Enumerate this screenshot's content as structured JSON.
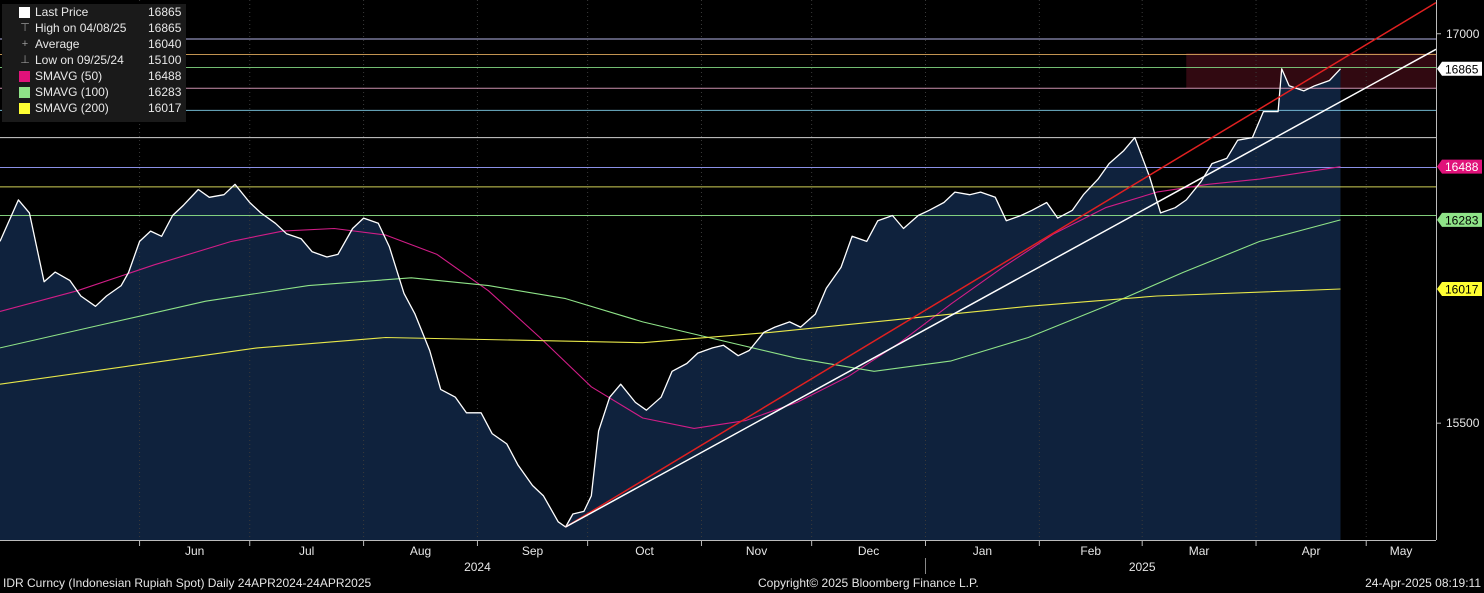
{
  "legend": {
    "rows": [
      {
        "label": "Last Price",
        "value": "16865",
        "swatch": "#ffffff",
        "glyph": ""
      },
      {
        "label": "High on 04/08/25",
        "value": "16865",
        "swatch": "",
        "glyph": "⊤"
      },
      {
        "label": "Average",
        "value": "16040",
        "swatch": "",
        "glyph": "+"
      },
      {
        "label": "Low on 09/25/24",
        "value": "15100",
        "swatch": "",
        "glyph": "⊥"
      },
      {
        "label": "SMAVG (50)",
        "value": "16488",
        "swatch": "#e0127a",
        "glyph": ""
      },
      {
        "label": "SMAVG (100)",
        "value": "16283",
        "swatch": "#8fe388",
        "glyph": ""
      },
      {
        "label": "SMAVG (200)",
        "value": "16017",
        "swatch": "#ffff33",
        "glyph": ""
      }
    ]
  },
  "footer": {
    "left": "IDR Curncy (Indonesian Rupiah Spot)  Daily 24APR2024-24APR2025",
    "center": "Copyright© 2025 Bloomberg Finance L.P.",
    "right": "24-Apr-2025 08:19:11"
  },
  "colors": {
    "background": "#000000",
    "area_fill": "#0f223d",
    "price": "#ffffff",
    "sma50": "#d11d87",
    "sma100": "#8fe388",
    "sma200": "#e8e84a",
    "trend_red": "#e02020",
    "trend_white": "#ffffff"
  },
  "chart_data": {
    "type": "line",
    "x_range": [
      "2024-04-24",
      "2025-05-20"
    ],
    "ylim": [
      15050,
      17130
    ],
    "y_ticks": [
      15500,
      17000
    ],
    "x_ticks": [
      {
        "label": "Jun",
        "date": "2024-06-01"
      },
      {
        "label": "Jul",
        "date": "2024-07-01"
      },
      {
        "label": "Aug",
        "date": "2024-08-01"
      },
      {
        "label": "Sep",
        "date": "2024-09-01"
      },
      {
        "label": "Oct",
        "date": "2024-10-01"
      },
      {
        "label": "Nov",
        "date": "2024-11-01"
      },
      {
        "label": "Dec",
        "date": "2024-12-01"
      },
      {
        "label": "Jan",
        "date": "2025-01-01"
      },
      {
        "label": "Feb",
        "date": "2025-02-01"
      },
      {
        "label": "Mar",
        "date": "2025-03-01"
      },
      {
        "label": "Apr",
        "date": "2025-04-01"
      },
      {
        "label": "May",
        "date": "2025-05-01"
      }
    ],
    "year_labels": [
      {
        "label": "2024",
        "date": "2024-09-01"
      },
      {
        "label": "2025",
        "date": "2025-03-01"
      }
    ],
    "value_labels": [
      {
        "value": 16865,
        "text": "16865",
        "bg": "#ffffff",
        "fg": "#000000"
      },
      {
        "value": 16488,
        "text": "16488",
        "bg": "#e0127a",
        "fg": "#ffffff"
      },
      {
        "value": 16283,
        "text": "16283",
        "bg": "#8fe388",
        "fg": "#000000"
      },
      {
        "value": 16017,
        "text": "16017",
        "bg": "#ffff33",
        "fg": "#000000"
      }
    ],
    "hlines": [
      {
        "value": 16980,
        "color": "#c9c9ff"
      },
      {
        "value": 16920,
        "color": "#d6a35a"
      },
      {
        "value": 16870,
        "color": "#7fd17f"
      },
      {
        "value": 16790,
        "color": "#e0a0c0"
      },
      {
        "value": 16705,
        "color": "#7ec8e3"
      },
      {
        "value": 16600,
        "color": "#e8e8e8"
      },
      {
        "value": 16485,
        "color": "#9aa0ff"
      },
      {
        "value": 16410,
        "color": "#e8e860"
      },
      {
        "value": 16300,
        "color": "#8fe388"
      }
    ],
    "band": {
      "from_date": "2025-03-13",
      "to_date": "2025-05-20",
      "y0": 16790,
      "y1": 16925
    },
    "series": [
      {
        "name": "Last Price",
        "points": [
          [
            "2024-04-24",
            16200
          ],
          [
            "2024-04-29",
            16360
          ],
          [
            "2024-05-02",
            16310
          ],
          [
            "2024-05-06",
            16045
          ],
          [
            "2024-05-09",
            16082
          ],
          [
            "2024-05-13",
            16050
          ],
          [
            "2024-05-16",
            15990
          ],
          [
            "2024-05-20",
            15950
          ],
          [
            "2024-05-23",
            15990
          ],
          [
            "2024-05-27",
            16030
          ],
          [
            "2024-05-29",
            16080
          ],
          [
            "2024-06-01",
            16200
          ],
          [
            "2024-06-04",
            16240
          ],
          [
            "2024-06-07",
            16220
          ],
          [
            "2024-06-10",
            16300
          ],
          [
            "2024-06-13",
            16340
          ],
          [
            "2024-06-17",
            16400
          ],
          [
            "2024-06-20",
            16370
          ],
          [
            "2024-06-24",
            16380
          ],
          [
            "2024-06-27",
            16420
          ],
          [
            "2024-07-01",
            16350
          ],
          [
            "2024-07-04",
            16310
          ],
          [
            "2024-07-08",
            16270
          ],
          [
            "2024-07-11",
            16230
          ],
          [
            "2024-07-15",
            16210
          ],
          [
            "2024-07-18",
            16160
          ],
          [
            "2024-07-22",
            16140
          ],
          [
            "2024-07-25",
            16150
          ],
          [
            "2024-07-29",
            16250
          ],
          [
            "2024-08-01",
            16290
          ],
          [
            "2024-08-05",
            16270
          ],
          [
            "2024-08-08",
            16180
          ],
          [
            "2024-08-12",
            16000
          ],
          [
            "2024-08-15",
            15920
          ],
          [
            "2024-08-19",
            15780
          ],
          [
            "2024-08-22",
            15630
          ],
          [
            "2024-08-26",
            15600
          ],
          [
            "2024-08-29",
            15540
          ],
          [
            "2024-09-02",
            15540
          ],
          [
            "2024-09-05",
            15460
          ],
          [
            "2024-09-09",
            15420
          ],
          [
            "2024-09-12",
            15340
          ],
          [
            "2024-09-16",
            15260
          ],
          [
            "2024-09-19",
            15220
          ],
          [
            "2024-09-23",
            15120
          ],
          [
            "2024-09-25",
            15100
          ],
          [
            "2024-09-27",
            15150
          ],
          [
            "2024-09-30",
            15160
          ],
          [
            "2024-10-02",
            15220
          ],
          [
            "2024-10-04",
            15470
          ],
          [
            "2024-10-07",
            15600
          ],
          [
            "2024-10-10",
            15650
          ],
          [
            "2024-10-14",
            15580
          ],
          [
            "2024-10-17",
            15550
          ],
          [
            "2024-10-21",
            15600
          ],
          [
            "2024-10-24",
            15700
          ],
          [
            "2024-10-28",
            15730
          ],
          [
            "2024-10-31",
            15770
          ],
          [
            "2024-11-04",
            15790
          ],
          [
            "2024-11-07",
            15800
          ],
          [
            "2024-11-11",
            15760
          ],
          [
            "2024-11-14",
            15780
          ],
          [
            "2024-11-18",
            15850
          ],
          [
            "2024-11-21",
            15870
          ],
          [
            "2024-11-25",
            15890
          ],
          [
            "2024-11-28",
            15870
          ],
          [
            "2024-12-02",
            15920
          ],
          [
            "2024-12-05",
            16020
          ],
          [
            "2024-12-09",
            16100
          ],
          [
            "2024-12-12",
            16220
          ],
          [
            "2024-12-16",
            16200
          ],
          [
            "2024-12-19",
            16280
          ],
          [
            "2024-12-23",
            16300
          ],
          [
            "2024-12-26",
            16250
          ],
          [
            "2024-12-30",
            16300
          ],
          [
            "2025-01-02",
            16320
          ],
          [
            "2025-01-06",
            16350
          ],
          [
            "2025-01-09",
            16390
          ],
          [
            "2025-01-13",
            16380
          ],
          [
            "2025-01-16",
            16390
          ],
          [
            "2025-01-20",
            16370
          ],
          [
            "2025-01-23",
            16280
          ],
          [
            "2025-01-27",
            16300
          ],
          [
            "2025-01-30",
            16320
          ],
          [
            "2025-02-03",
            16350
          ],
          [
            "2025-02-06",
            16290
          ],
          [
            "2025-02-10",
            16320
          ],
          [
            "2025-02-13",
            16380
          ],
          [
            "2025-02-17",
            16440
          ],
          [
            "2025-02-20",
            16500
          ],
          [
            "2025-02-24",
            16550
          ],
          [
            "2025-02-27",
            16600
          ],
          [
            "2025-03-03",
            16450
          ],
          [
            "2025-03-06",
            16310
          ],
          [
            "2025-03-10",
            16330
          ],
          [
            "2025-03-13",
            16360
          ],
          [
            "2025-03-17",
            16430
          ],
          [
            "2025-03-20",
            16500
          ],
          [
            "2025-03-24",
            16520
          ],
          [
            "2025-03-27",
            16590
          ],
          [
            "2025-03-31",
            16600
          ],
          [
            "2025-04-03",
            16700
          ],
          [
            "2025-04-07",
            16700
          ],
          [
            "2025-04-08",
            16865
          ],
          [
            "2025-04-10",
            16800
          ],
          [
            "2025-04-14",
            16780
          ],
          [
            "2025-04-17",
            16800
          ],
          [
            "2025-04-21",
            16820
          ],
          [
            "2025-04-24",
            16865
          ]
        ]
      },
      {
        "name": "SMAVG (50)",
        "points": [
          [
            "2024-04-24",
            15930
          ],
          [
            "2024-05-15",
            16010
          ],
          [
            "2024-06-05",
            16110
          ],
          [
            "2024-06-26",
            16200
          ],
          [
            "2024-07-10",
            16240
          ],
          [
            "2024-07-24",
            16250
          ],
          [
            "2024-08-07",
            16225
          ],
          [
            "2024-08-21",
            16150
          ],
          [
            "2024-09-04",
            16010
          ],
          [
            "2024-09-18",
            15830
          ],
          [
            "2024-10-02",
            15640
          ],
          [
            "2024-10-16",
            15520
          ],
          [
            "2024-10-30",
            15480
          ],
          [
            "2024-11-13",
            15510
          ],
          [
            "2024-11-27",
            15580
          ],
          [
            "2024-12-11",
            15680
          ],
          [
            "2024-12-25",
            15810
          ],
          [
            "2025-01-08",
            15960
          ],
          [
            "2025-01-22",
            16100
          ],
          [
            "2025-02-05",
            16230
          ],
          [
            "2025-02-19",
            16330
          ],
          [
            "2025-03-05",
            16390
          ],
          [
            "2025-03-19",
            16420
          ],
          [
            "2025-04-02",
            16440
          ],
          [
            "2025-04-24",
            16488
          ]
        ]
      },
      {
        "name": "SMAVG (100)",
        "points": [
          [
            "2024-04-24",
            15790
          ],
          [
            "2024-05-22",
            15880
          ],
          [
            "2024-06-19",
            15970
          ],
          [
            "2024-07-17",
            16030
          ],
          [
            "2024-08-14",
            16060
          ],
          [
            "2024-09-04",
            16030
          ],
          [
            "2024-09-25",
            15980
          ],
          [
            "2024-10-16",
            15890
          ],
          [
            "2024-11-06",
            15820
          ],
          [
            "2024-11-27",
            15750
          ],
          [
            "2024-12-18",
            15700
          ],
          [
            "2025-01-08",
            15740
          ],
          [
            "2025-01-29",
            15830
          ],
          [
            "2025-02-19",
            15950
          ],
          [
            "2025-03-12",
            16080
          ],
          [
            "2025-04-02",
            16200
          ],
          [
            "2025-04-24",
            16283
          ]
        ]
      },
      {
        "name": "SMAVG (200)",
        "points": [
          [
            "2024-04-24",
            15650
          ],
          [
            "2024-05-29",
            15720
          ],
          [
            "2024-07-03",
            15790
          ],
          [
            "2024-08-07",
            15830
          ],
          [
            "2024-09-11",
            15820
          ],
          [
            "2024-10-16",
            15810
          ],
          [
            "2024-11-20",
            15850
          ],
          [
            "2024-12-25",
            15900
          ],
          [
            "2025-01-29",
            15950
          ],
          [
            "2025-03-05",
            15990
          ],
          [
            "2025-04-24",
            16017
          ]
        ]
      }
    ],
    "trendlines": [
      {
        "color": "#e02020",
        "from": [
          "2024-09-25",
          15100
        ],
        "to": [
          "2025-05-20",
          17120
        ]
      },
      {
        "color": "#ffffff",
        "from": [
          "2024-09-25",
          15100
        ],
        "to": [
          "2025-05-20",
          16940
        ]
      }
    ]
  }
}
